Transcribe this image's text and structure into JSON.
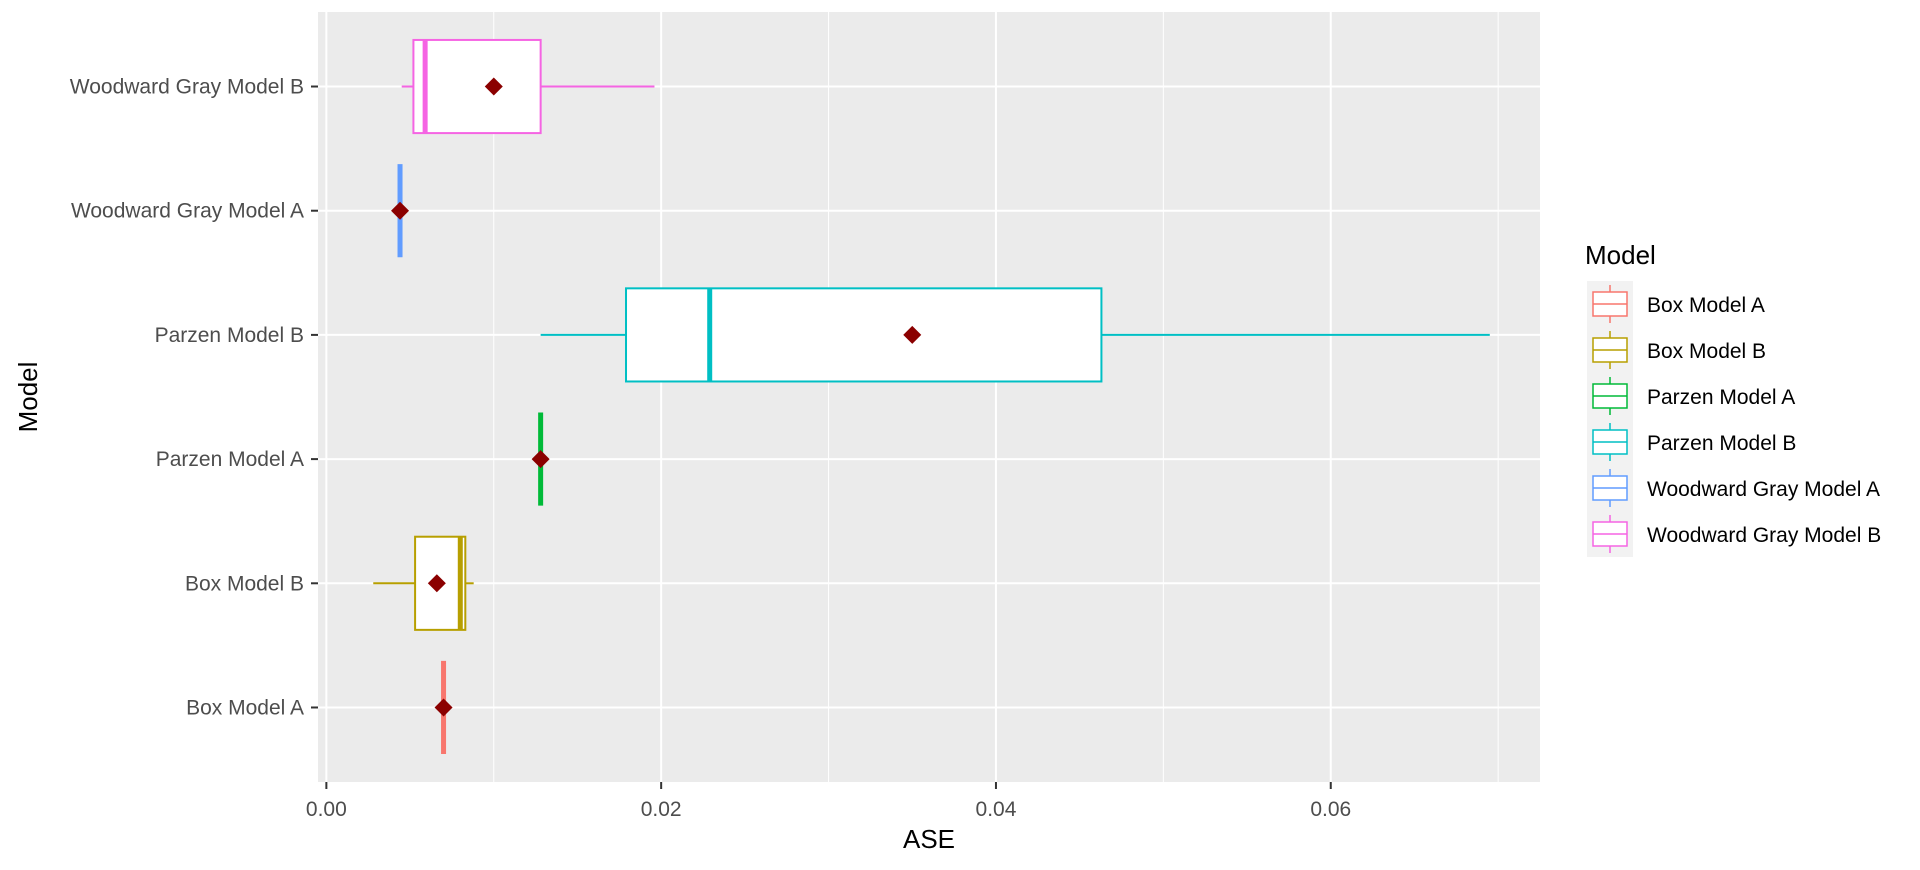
{
  "chart_data": {
    "type": "boxplot",
    "orientation": "horizontal",
    "xlabel": "ASE",
    "ylabel": "Model",
    "xlim": [
      -0.0005,
      0.0725
    ],
    "x_ticks": [
      0.0,
      0.02,
      0.04,
      0.06
    ],
    "x_tick_labels": [
      "0.00",
      "0.02",
      "0.04",
      "0.06"
    ],
    "x_minor_ticks": [
      0.01,
      0.03,
      0.05,
      0.07
    ],
    "grid": true,
    "background": "#EBEBEB",
    "mean_marker": {
      "shape": "diamond",
      "color": "#8B0000"
    },
    "legend": {
      "title": "Model",
      "placement": "right"
    },
    "categories": [
      "Box Model A",
      "Box Model B",
      "Parzen Model A",
      "Parzen Model B",
      "Woodward Gray Model A",
      "Woodward Gray Model B"
    ],
    "series": [
      {
        "name": "Box Model A",
        "color": "#F8766D",
        "min": 0.007,
        "q1": 0.007,
        "median": 0.007,
        "q3": 0.007,
        "max": 0.007,
        "mean": 0.007
      },
      {
        "name": "Box Model B",
        "color": "#B79F00",
        "min": 0.0028,
        "q1": 0.0053,
        "median": 0.008,
        "q3": 0.0083,
        "max": 0.0088,
        "mean": 0.0066
      },
      {
        "name": "Parzen Model A",
        "color": "#00BA38",
        "min": 0.0128,
        "q1": 0.0128,
        "median": 0.0128,
        "q3": 0.0128,
        "max": 0.0128,
        "mean": 0.0128
      },
      {
        "name": "Parzen Model B",
        "color": "#00BFC4",
        "min": 0.0128,
        "q1": 0.0179,
        "median": 0.0229,
        "q3": 0.0463,
        "max": 0.0695,
        "mean": 0.035
      },
      {
        "name": "Woodward Gray Model A",
        "color": "#619CFF",
        "min": 0.0044,
        "q1": 0.0044,
        "median": 0.0044,
        "q3": 0.0044,
        "max": 0.0044,
        "mean": 0.0044
      },
      {
        "name": "Woodward Gray Model B",
        "color": "#F564E3",
        "min": 0.0045,
        "q1": 0.0052,
        "median": 0.0059,
        "q3": 0.0128,
        "max": 0.0196,
        "mean": 0.01
      }
    ]
  }
}
